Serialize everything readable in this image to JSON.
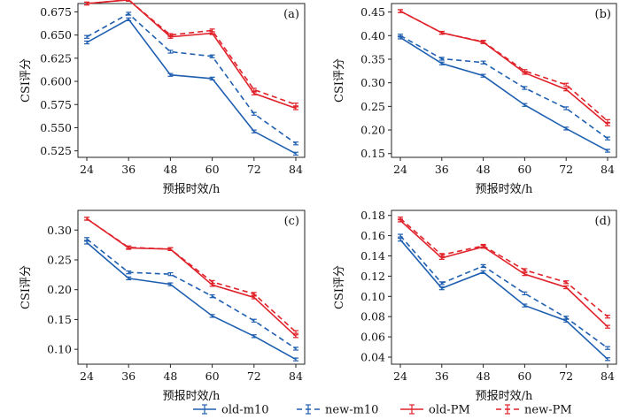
{
  "legend": [
    {
      "label": "old-m10",
      "color": "#1f5fb0",
      "dash": false
    },
    {
      "label": "new-m10",
      "color": "#1f5fb0",
      "dash": true
    },
    {
      "label": "old-PM",
      "color": "#e0222a",
      "dash": false
    },
    {
      "label": "new-PM",
      "color": "#e0222a",
      "dash": true
    }
  ],
  "chart_data": [
    {
      "type": "line",
      "panel": "(a)",
      "xlabel": "预报时效/h",
      "ylabel": "CSI评分",
      "x": [
        24,
        36,
        48,
        60,
        72,
        84
      ],
      "ylim": [
        0.518,
        0.684
      ],
      "yticks": [
        "0.525",
        "0.550",
        "0.575",
        "0.600",
        "0.625",
        "0.650",
        "0.675"
      ],
      "series": [
        {
          "name": "old-m10",
          "values": [
            0.642,
            0.667,
            0.607,
            0.603,
            0.546,
            0.522
          ]
        },
        {
          "name": "new-m10",
          "values": [
            0.648,
            0.673,
            0.632,
            0.627,
            0.565,
            0.533
          ]
        },
        {
          "name": "old-PM",
          "values": [
            0.684,
            0.688,
            0.648,
            0.652,
            0.587,
            0.571
          ]
        },
        {
          "name": "new-PM",
          "values": [
            0.684,
            0.688,
            0.65,
            0.655,
            0.591,
            0.575
          ]
        }
      ]
    },
    {
      "type": "line",
      "panel": "(b)",
      "xlabel": "预报时效/h",
      "ylabel": "CSI评分",
      "x": [
        24,
        36,
        48,
        60,
        72,
        84
      ],
      "ylim": [
        0.142,
        0.468
      ],
      "yticks": [
        "0.15",
        "0.20",
        "0.25",
        "0.30",
        "0.35",
        "0.40",
        "0.45"
      ],
      "series": [
        {
          "name": "old-m10",
          "values": [
            0.396,
            0.341,
            0.315,
            0.253,
            0.203,
            0.156
          ]
        },
        {
          "name": "new-m10",
          "values": [
            0.4,
            0.351,
            0.343,
            0.289,
            0.246,
            0.182
          ]
        },
        {
          "name": "old-PM",
          "values": [
            0.452,
            0.406,
            0.386,
            0.321,
            0.286,
            0.212
          ]
        },
        {
          "name": "new-PM",
          "values": [
            0.452,
            0.406,
            0.387,
            0.325,
            0.296,
            0.219
          ]
        }
      ]
    },
    {
      "type": "line",
      "panel": "(c)",
      "xlabel": "预报时效/h",
      "ylabel": "CSI评分",
      "x": [
        24,
        36,
        48,
        60,
        72,
        84
      ],
      "ylim": [
        0.075,
        0.333
      ],
      "yticks": [
        "0.10",
        "0.15",
        "0.20",
        "0.25",
        "0.30"
      ],
      "series": [
        {
          "name": "old-m10",
          "values": [
            0.279,
            0.219,
            0.209,
            0.156,
            0.122,
            0.083
          ]
        },
        {
          "name": "new-m10",
          "values": [
            0.285,
            0.229,
            0.226,
            0.189,
            0.148,
            0.101
          ]
        },
        {
          "name": "old-PM",
          "values": [
            0.319,
            0.27,
            0.268,
            0.208,
            0.187,
            0.122
          ]
        },
        {
          "name": "new-PM",
          "values": [
            0.319,
            0.271,
            0.268,
            0.213,
            0.193,
            0.129
          ]
        }
      ]
    },
    {
      "type": "line",
      "panel": "(d)",
      "xlabel": "预报时效/h",
      "ylabel": "CSI评分",
      "x": [
        24,
        36,
        48,
        60,
        72,
        84
      ],
      "ylim": [
        0.033,
        0.185
      ],
      "yticks": [
        "0.04",
        "0.06",
        "0.08",
        "0.10",
        "0.12",
        "0.14",
        "0.16",
        "0.18"
      ],
      "series": [
        {
          "name": "old-m10",
          "values": [
            0.156,
            0.108,
            0.124,
            0.091,
            0.076,
            0.038
          ]
        },
        {
          "name": "new-m10",
          "values": [
            0.16,
            0.113,
            0.13,
            0.103,
            0.079,
            0.049
          ]
        },
        {
          "name": "old-PM",
          "values": [
            0.175,
            0.138,
            0.149,
            0.122,
            0.109,
            0.07
          ]
        },
        {
          "name": "new-PM",
          "values": [
            0.177,
            0.141,
            0.15,
            0.126,
            0.114,
            0.08
          ]
        }
      ]
    }
  ]
}
